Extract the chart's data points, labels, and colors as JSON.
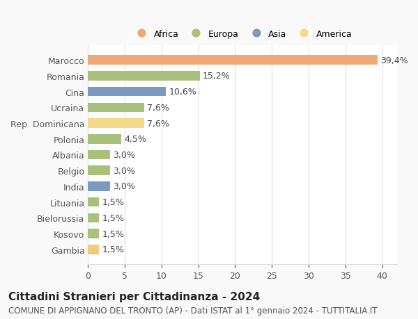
{
  "categories": [
    "Gambia",
    "Kosovo",
    "Bielorussia",
    "Lituania",
    "India",
    "Belgio",
    "Albania",
    "Polonia",
    "Rep. Dominicana",
    "Ucraina",
    "Cina",
    "Romania",
    "Marocco"
  ],
  "values": [
    1.5,
    1.5,
    1.5,
    1.5,
    3.0,
    3.0,
    3.0,
    4.5,
    7.6,
    7.6,
    10.6,
    15.2,
    39.4
  ],
  "colors": [
    "#F5C97A",
    "#A8C07A",
    "#A8C07A",
    "#A8C07A",
    "#7A9BBF",
    "#A8C07A",
    "#A8C07A",
    "#A8C07A",
    "#F5D98A",
    "#A8C07A",
    "#7A9BBF",
    "#A8C07A",
    "#F0A875"
  ],
  "labels": [
    "1,5%",
    "1,5%",
    "1,5%",
    "1,5%",
    "3,0%",
    "3,0%",
    "3,0%",
    "4,5%",
    "7,6%",
    "7,6%",
    "10,6%",
    "15,2%",
    "39,4%"
  ],
  "legend_labels": [
    "Africa",
    "Europa",
    "Asia",
    "America"
  ],
  "legend_colors": [
    "#F0A875",
    "#A8C07A",
    "#7A9BBF",
    "#F5D98A"
  ],
  "title": "Cittadini Stranieri per Cittadinanza - 2024",
  "subtitle": "COMUNE DI APPIGNANO DEL TRONTO (AP) - Dati ISTAT al 1° gennaio 2024 - TUTTITALIA.IT",
  "xlim": [
    0,
    42
  ],
  "xticks": [
    0,
    5,
    10,
    15,
    20,
    25,
    30,
    35,
    40
  ],
  "background_color": "#f9f9f9",
  "bar_background": "#ffffff",
  "grid_color": "#dddddd",
  "title_fontsize": 11,
  "subtitle_fontsize": 8.5,
  "label_fontsize": 9,
  "tick_fontsize": 9
}
